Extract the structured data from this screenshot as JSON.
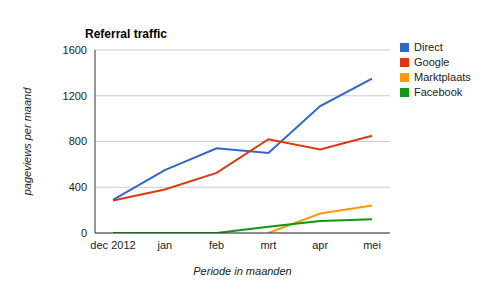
{
  "chart_data": {
    "type": "line",
    "title": "Referral traffic",
    "x_label": "Periode in maanden",
    "y_label": "pageviews per maand",
    "categories": [
      "dec 2012",
      "jan",
      "feb",
      "mrt",
      "apr",
      "mei"
    ],
    "series": [
      {
        "name": "Direct",
        "color": "#3366cc",
        "values": [
          290,
          550,
          740,
          700,
          1110,
          1350
        ]
      },
      {
        "name": "Google",
        "color": "#dc3912",
        "values": [
          285,
          380,
          525,
          820,
          730,
          850
        ]
      },
      {
        "name": "Marktplaats",
        "color": "#ff9900",
        "values": [
          null,
          null,
          null,
          0,
          170,
          240
        ]
      },
      {
        "name": "Facebook",
        "color": "#109618",
        "values": [
          0,
          0,
          0,
          55,
          105,
          120
        ]
      }
    ],
    "ylim": [
      0,
      1600
    ],
    "yticks": [
      0,
      400,
      800,
      1200,
      1600
    ],
    "grid": true,
    "legend": "right"
  }
}
